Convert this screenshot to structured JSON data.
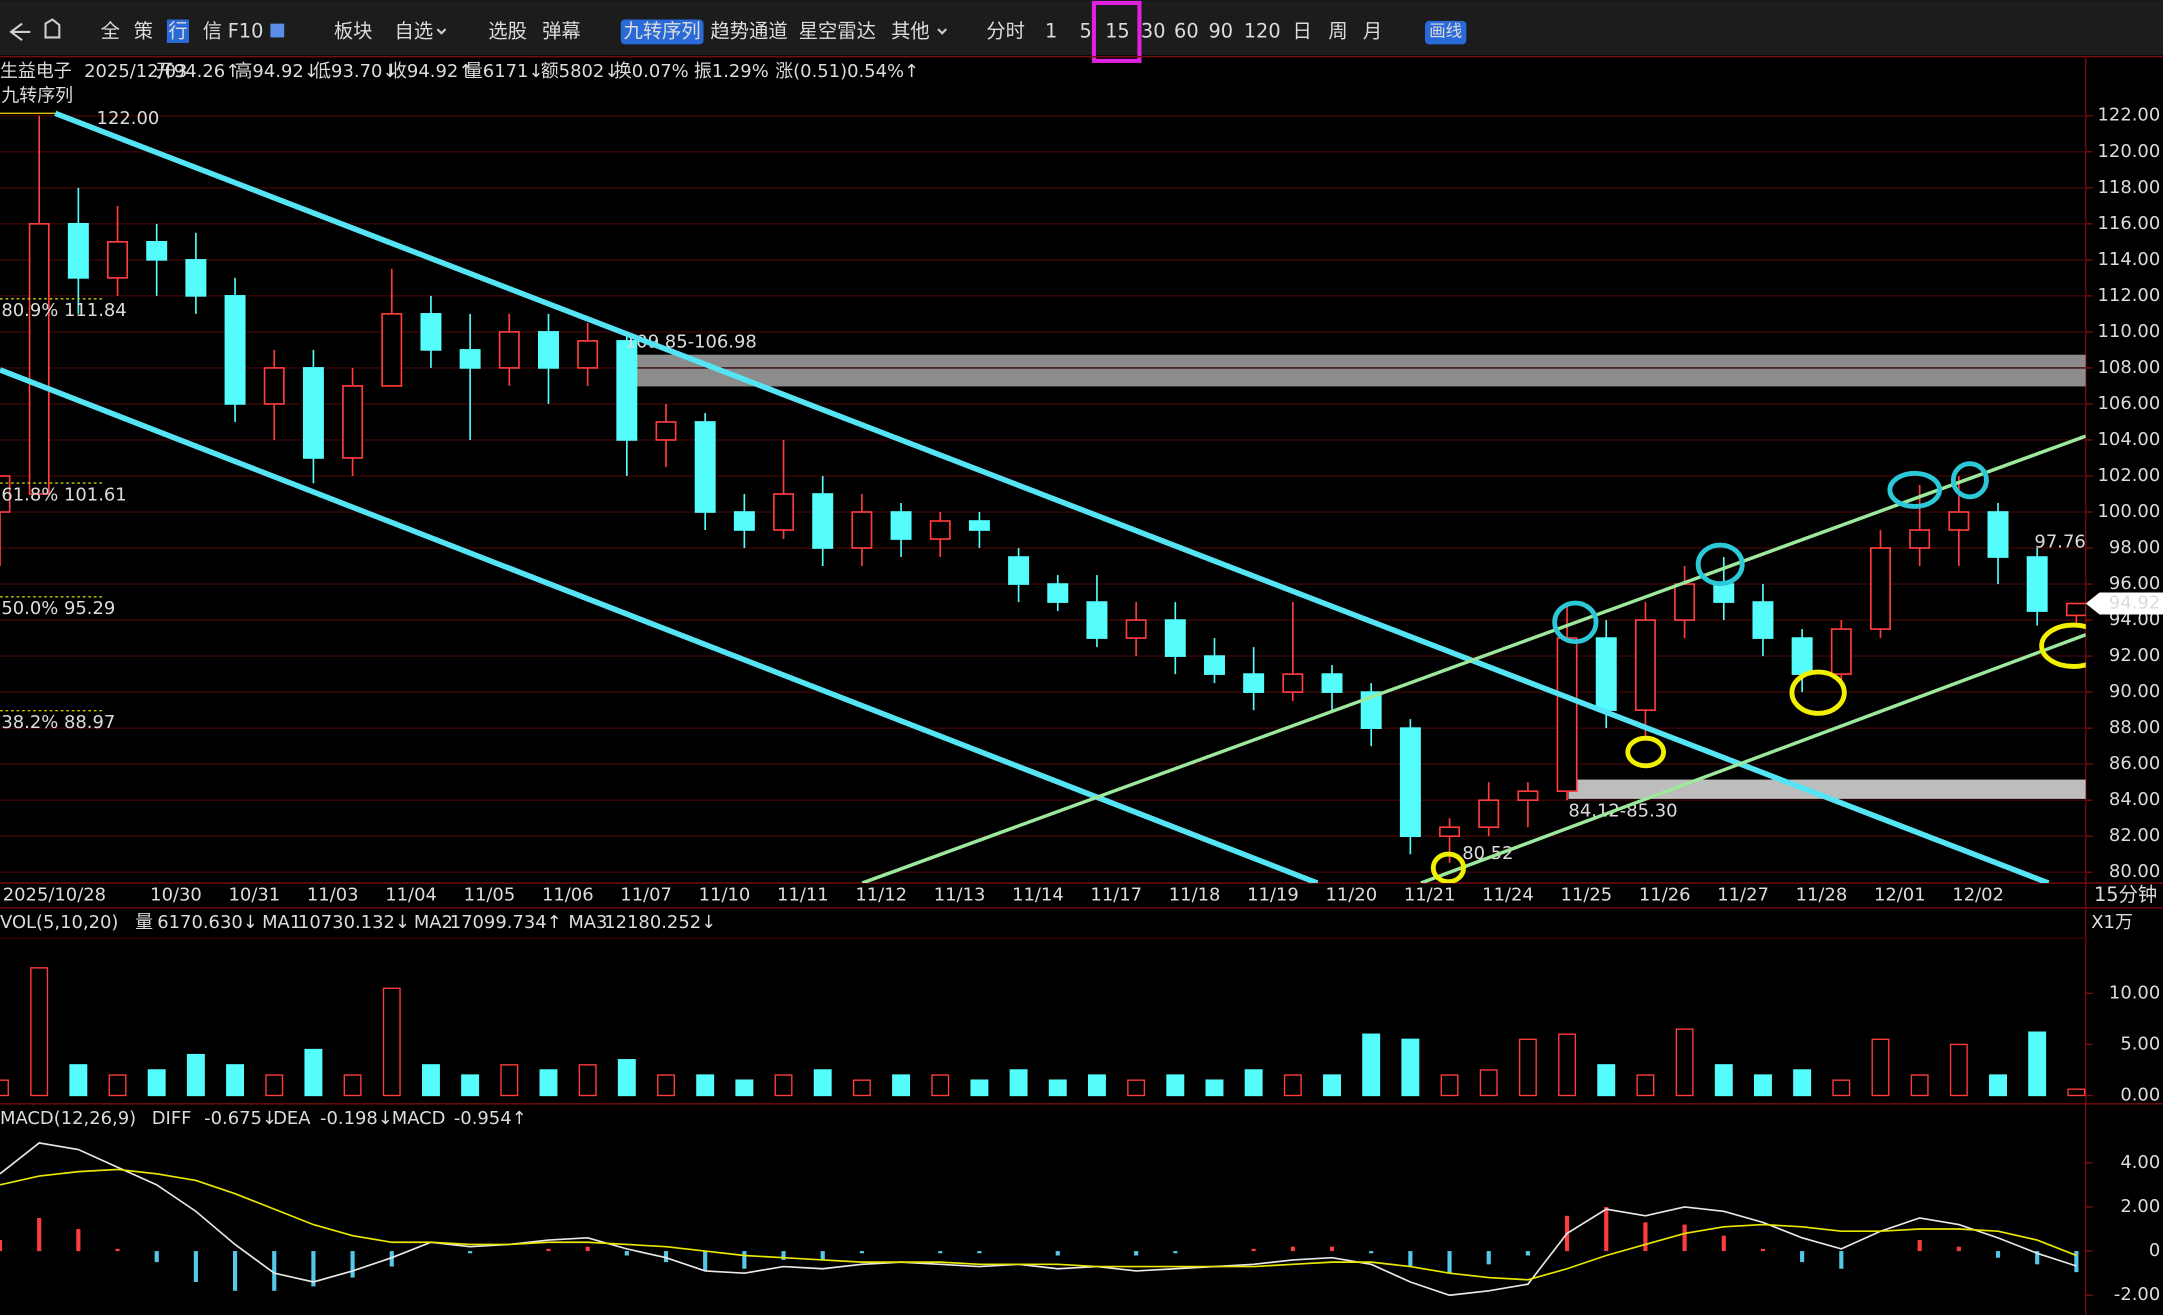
{
  "toolbar": {
    "items": [
      "全",
      "策",
      "行",
      "信",
      "F10",
      "板块",
      "自选",
      "选股",
      "弹幕",
      "九转序列",
      "趋势通道",
      "星空雷达",
      "其他"
    ],
    "periods": [
      "分时",
      "1",
      "5",
      "15",
      "30",
      "60",
      "90",
      "120",
      "日",
      "周",
      "月"
    ],
    "draw_button": "画线"
  },
  "info_bar": {
    "name": "生益电子",
    "date": "2025/12/03",
    "items": [
      {
        "label": "开",
        "value": "94.26↑"
      },
      {
        "label": "高",
        "value": "94.92↓"
      },
      {
        "label": "低",
        "value": "93.70↓"
      },
      {
        "label": "收",
        "value": "94.92↑"
      },
      {
        "label": "量",
        "value": "6171↓"
      },
      {
        "label": "额",
        "value": "5802↓"
      },
      {
        "label": "换",
        "value": "0.07%"
      },
      {
        "label": "振",
        "value": "1.29%"
      },
      {
        "label": "涨",
        "value": "(0.51)0.54%↑"
      }
    ]
  },
  "chart_data": [
    {
      "type": "candlestick",
      "indicator": "九转序列",
      "categories": [
        "2025/10/28",
        null,
        null,
        null,
        "10/30",
        null,
        "10/31",
        null,
        "11/03",
        null,
        "11/04",
        null,
        "11/05",
        null,
        "11/06",
        null,
        "11/07",
        null,
        "11/10",
        null,
        "11/11",
        null,
        "11/12",
        null,
        "11/13",
        null,
        "11/14",
        null,
        "11/17",
        null,
        "11/18",
        null,
        "11/19",
        null,
        "11/20",
        null,
        "11/21",
        null,
        "11/24",
        null,
        "11/25",
        null,
        "11/26",
        null,
        "11/27",
        null,
        "11/28",
        null,
        "12/01",
        null,
        "12/02",
        null,
        null,
        null
      ],
      "open": [
        100,
        101,
        116,
        113,
        115,
        114,
        112,
        106,
        108,
        103,
        107,
        111,
        109,
        108,
        110,
        108,
        109.5,
        104,
        105,
        100,
        99,
        101,
        98,
        100,
        98.5,
        99.5,
        97.5,
        96,
        95,
        93,
        94,
        92,
        91,
        90,
        91,
        90,
        88,
        82,
        82.5,
        84,
        84.5,
        93,
        89,
        94,
        96,
        95,
        93,
        91,
        93.5,
        98,
        99,
        100,
        97.5,
        94.26
      ],
      "high": [
        102,
        122,
        118,
        117,
        116,
        115.5,
        113,
        109,
        109,
        108,
        113.5,
        112,
        111,
        111,
        111,
        110.5,
        110,
        106,
        105.5,
        101,
        104,
        102,
        101,
        100.5,
        100,
        100,
        98,
        96.5,
        96.5,
        95,
        95,
        93,
        92.5,
        95,
        91.5,
        90.5,
        88.5,
        83,
        85,
        85,
        95,
        94,
        95,
        97,
        97.5,
        96,
        93.5,
        94,
        99,
        101.5,
        102,
        100.5,
        98,
        94.92
      ],
      "low": [
        97,
        101,
        111,
        112,
        112,
        111,
        105,
        104,
        101.6,
        102,
        107,
        108,
        104,
        107,
        106,
        107,
        102,
        102.5,
        99,
        98,
        98.5,
        97,
        97,
        97.5,
        97.5,
        98,
        95,
        94.5,
        92.5,
        92,
        91,
        90.5,
        89,
        89.5,
        89,
        87,
        81,
        80.52,
        82,
        82.5,
        84,
        88,
        87.5,
        93,
        94,
        92,
        90,
        90.5,
        93,
        97,
        97,
        96,
        93.7,
        93.7
      ],
      "close": [
        102,
        116,
        113,
        115,
        114,
        112,
        106,
        108,
        103,
        107,
        111,
        109,
        108,
        110,
        108,
        109.5,
        104,
        105,
        100,
        99,
        101,
        98,
        100,
        98.5,
        99.5,
        99,
        96,
        95,
        93,
        94,
        92,
        91,
        90,
        91,
        90,
        88,
        82,
        82.5,
        84,
        84.5,
        93,
        89,
        94,
        96,
        95,
        93,
        91,
        93.5,
        98,
        99,
        100,
        97.5,
        94.5,
        94.92
      ],
      "up_color": "#ff3c3c",
      "down_color": "#54fcfc",
      "ylim": [
        79.4,
        125.2
      ],
      "yticks": [
        {
          "value": 80,
          "label": "80.00"
        },
        {
          "value": 82,
          "label": "82.00"
        },
        {
          "value": 84,
          "label": "84.00"
        },
        {
          "value": 86,
          "label": "86.00"
        },
        {
          "value": 88,
          "label": "88.00"
        },
        {
          "value": 90,
          "label": "90.00"
        },
        {
          "value": 92,
          "label": "92.00"
        },
        {
          "value": 94,
          "label": "94.00"
        },
        {
          "value": 96,
          "label": "96.00"
        },
        {
          "value": 98,
          "label": "98.00"
        },
        {
          "value": 100,
          "label": "100.00"
        },
        {
          "value": 102,
          "label": "102.00"
        },
        {
          "value": 104,
          "label": "104.00"
        },
        {
          "value": 106,
          "label": "106.00"
        },
        {
          "value": 108,
          "label": "108.00"
        },
        {
          "value": 110,
          "label": "110.00"
        },
        {
          "value": 112,
          "label": "112.00"
        },
        {
          "value": 114,
          "label": "114.00"
        },
        {
          "value": 116,
          "label": "116.00"
        },
        {
          "value": 118,
          "label": "118.00"
        },
        {
          "value": 120,
          "label": "120.00"
        },
        {
          "value": 122,
          "label": "122.00"
        }
      ],
      "grid": true,
      "current_price": 94.92,
      "period_label": "15分钟",
      "fib_levels": [
        {
          "value": 111.84,
          "label": "80.9% 111.84"
        },
        {
          "value": 101.61,
          "label": "61.8% 101.61"
        },
        {
          "value": 95.29,
          "label": "50.0% 95.29"
        },
        {
          "value": 88.97,
          "label": "38.2% 88.97"
        }
      ],
      "annotations": [
        "122.00",
        "109.85-106.98",
        "84.12-85.30",
        "80.52",
        "97.76"
      ]
    },
    {
      "type": "bar",
      "title": "VOL(5,10,20)",
      "unit_label": "X1万",
      "legend": [
        {
          "name": "量",
          "value": "6170.630↓",
          "color": "#e0e0e0"
        },
        {
          "name": "MA1",
          "value": "10730.132↓",
          "color": "#f0f000"
        },
        {
          "name": "MA2",
          "value": "17099.734↑",
          "color": "#ff3cff"
        },
        {
          "name": "MA3",
          "value": "12180.252↓",
          "color": "#3cff3c"
        }
      ],
      "values": [
        1.5,
        12.5,
        3,
        2,
        2.5,
        4,
        3,
        2,
        4.5,
        2,
        10.5,
        3,
        2,
        3,
        2.5,
        3,
        3.5,
        2,
        2,
        1.5,
        2,
        2.5,
        1.5,
        2,
        2,
        1.5,
        2.5,
        1.5,
        2,
        1.5,
        2,
        1.5,
        2.5,
        2,
        2,
        6,
        5.5,
        2,
        2.5,
        5.5,
        6,
        3,
        2,
        6.5,
        3,
        2,
        2.5,
        1.5,
        5.5,
        2,
        5,
        2,
        6.2,
        0.617
      ],
      "ylim": [
        0,
        15.2
      ],
      "yticks": [
        {
          "value": 0,
          "label": "0.00"
        },
        {
          "value": 5,
          "label": "5.00"
        },
        {
          "value": 10,
          "label": "10.00"
        }
      ]
    },
    {
      "type": "macd",
      "title": "MACD(12,26,9)",
      "series": [
        {
          "name": "DIFF",
          "legend_value": "-0.675↓",
          "color": "#e8e8e8",
          "values": [
            3.5,
            4.9,
            4.6,
            3.8,
            3.0,
            1.8,
            0.3,
            -1.0,
            -1.4,
            -0.9,
            -0.3,
            0.4,
            0.2,
            0.3,
            0.5,
            0.6,
            0.1,
            -0.3,
            -0.9,
            -1.0,
            -0.7,
            -0.8,
            -0.6,
            -0.5,
            -0.6,
            -0.7,
            -0.6,
            -0.8,
            -0.7,
            -0.9,
            -0.8,
            -0.7,
            -0.6,
            -0.4,
            -0.3,
            -0.6,
            -1.4,
            -2.0,
            -1.8,
            -1.5,
            0.8,
            1.9,
            1.6,
            2.0,
            1.8,
            1.3,
            0.6,
            0.1,
            0.9,
            1.5,
            1.2,
            0.6,
            -0.1,
            -0.675
          ]
        },
        {
          "name": "DEA",
          "legend_value": "-0.198↓",
          "color": "#e8e800",
          "values": [
            3.0,
            3.4,
            3.6,
            3.7,
            3.5,
            3.2,
            2.6,
            1.9,
            1.2,
            0.7,
            0.4,
            0.4,
            0.3,
            0.3,
            0.4,
            0.4,
            0.3,
            0.2,
            0.0,
            -0.2,
            -0.3,
            -0.4,
            -0.5,
            -0.5,
            -0.5,
            -0.6,
            -0.6,
            -0.6,
            -0.7,
            -0.7,
            -0.7,
            -0.7,
            -0.7,
            -0.6,
            -0.5,
            -0.5,
            -0.7,
            -1.0,
            -1.2,
            -1.3,
            -0.8,
            -0.2,
            0.3,
            0.8,
            1.1,
            1.2,
            1.1,
            0.9,
            0.9,
            1.0,
            1.0,
            0.9,
            0.5,
            -0.198
          ]
        }
      ],
      "histogram": {
        "name": "MACD",
        "legend_value": "-0.954↑",
        "color": "#ff3cff",
        "up_color": "#ff3c3c",
        "down_color": "#54c8e8",
        "values": [
          0.5,
          1.5,
          1.0,
          0.1,
          -0.5,
          -1.4,
          -1.8,
          -1.8,
          -1.6,
          -1.2,
          -0.7,
          0.0,
          -0.1,
          0.0,
          0.1,
          0.2,
          -0.2,
          -0.5,
          -0.9,
          -0.8,
          -0.4,
          -0.4,
          -0.1,
          0.0,
          -0.1,
          -0.1,
          0.0,
          -0.2,
          0.0,
          -0.2,
          -0.1,
          0.0,
          0.1,
          0.2,
          0.2,
          -0.1,
          -0.7,
          -1.0,
          -0.6,
          -0.2,
          1.6,
          2.0,
          1.3,
          1.2,
          0.7,
          0.1,
          -0.5,
          -0.8,
          0.0,
          0.5,
          0.2,
          -0.3,
          -0.6,
          -0.954
        ]
      },
      "ylim": [
        -2.7,
        5.3
      ],
      "yticks": [
        {
          "value": -2,
          "label": "-2.00"
        },
        0,
        {
          "value": 2,
          "label": "2.00"
        },
        {
          "value": 4,
          "label": "4.00"
        }
      ]
    }
  ]
}
